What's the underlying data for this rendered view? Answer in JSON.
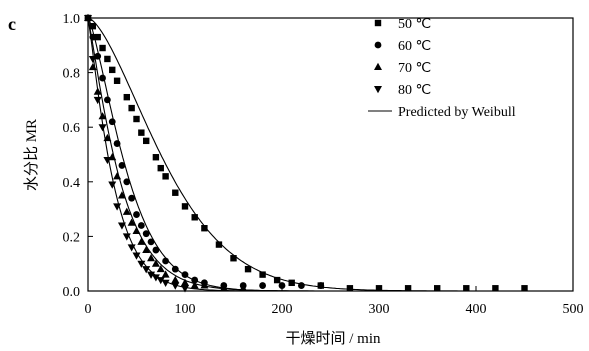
{
  "chart_data": {
    "type": "scatter",
    "panel_label": "c",
    "title": "",
    "xlabel": "干燥时间 / min",
    "ylabel": "水分比 MR",
    "xlim": [
      0,
      500
    ],
    "ylim": [
      0,
      1.0
    ],
    "x_ticks": [
      "0",
      "100",
      "200",
      "300",
      "400",
      "500"
    ],
    "x_tick_values": [
      0,
      100,
      200,
      300,
      400,
      500
    ],
    "y_ticks": [
      "0.0",
      "0.2",
      "0.4",
      "0.6",
      "0.8",
      "1.0"
    ],
    "y_tick_values": [
      0,
      0.2,
      0.4,
      0.6,
      0.8,
      1.0
    ],
    "grid": false,
    "legend_position": "top-right",
    "series": [
      {
        "name": "50 ℃",
        "marker": "square",
        "x": [
          0,
          5,
          10,
          15,
          20,
          25,
          30,
          40,
          45,
          50,
          55,
          60,
          70,
          75,
          80,
          90,
          100,
          110,
          120,
          135,
          150,
          165,
          180,
          195,
          210,
          240,
          270,
          300,
          330,
          360,
          390,
          420,
          450
        ],
        "y": [
          1.0,
          0.97,
          0.93,
          0.89,
          0.85,
          0.81,
          0.77,
          0.71,
          0.67,
          0.63,
          0.58,
          0.55,
          0.49,
          0.45,
          0.42,
          0.36,
          0.31,
          0.27,
          0.23,
          0.17,
          0.12,
          0.08,
          0.06,
          0.04,
          0.03,
          0.02,
          0.01,
          0.01,
          0.01,
          0.01,
          0.01,
          0.01,
          0.01
        ],
        "fit": {
          "scale": 95,
          "shape": 1.55
        }
      },
      {
        "name": "60 ℃",
        "marker": "circle",
        "x": [
          0,
          5,
          10,
          15,
          20,
          25,
          30,
          35,
          40,
          45,
          50,
          55,
          60,
          65,
          70,
          80,
          90,
          100,
          110,
          120,
          140,
          160,
          180,
          200,
          220,
          240
        ],
        "y": [
          1.0,
          0.93,
          0.86,
          0.78,
          0.7,
          0.62,
          0.54,
          0.46,
          0.4,
          0.34,
          0.28,
          0.24,
          0.21,
          0.18,
          0.15,
          0.11,
          0.08,
          0.06,
          0.04,
          0.03,
          0.02,
          0.02,
          0.02,
          0.02,
          0.02,
          0.02
        ],
        "fit": {
          "scale": 46,
          "shape": 1.35
        }
      },
      {
        "name": "70 ℃",
        "marker": "triangle-up",
        "x": [
          0,
          5,
          10,
          15,
          20,
          25,
          30,
          35,
          40,
          45,
          50,
          55,
          60,
          65,
          70,
          75,
          80,
          90,
          100,
          110,
          120,
          140,
          160
        ],
        "y": [
          1.0,
          0.82,
          0.73,
          0.64,
          0.56,
          0.49,
          0.42,
          0.35,
          0.29,
          0.25,
          0.22,
          0.18,
          0.15,
          0.12,
          0.1,
          0.08,
          0.06,
          0.04,
          0.03,
          0.02,
          0.02,
          0.01,
          0.01
        ],
        "fit": {
          "scale": 36,
          "shape": 1.15
        }
      },
      {
        "name": "80 ℃",
        "marker": "triangle-down",
        "x": [
          0,
          5,
          10,
          15,
          20,
          25,
          30,
          35,
          40,
          45,
          50,
          55,
          60,
          65,
          70,
          75,
          80,
          90,
          100
        ],
        "y": [
          1.0,
          0.85,
          0.7,
          0.6,
          0.48,
          0.39,
          0.31,
          0.24,
          0.2,
          0.16,
          0.13,
          0.1,
          0.08,
          0.06,
          0.05,
          0.04,
          0.03,
          0.02,
          0.01
        ],
        "fit": {
          "scale": 28,
          "shape": 1.15
        }
      }
    ],
    "fit_legend": "Predicted by Weibull"
  }
}
